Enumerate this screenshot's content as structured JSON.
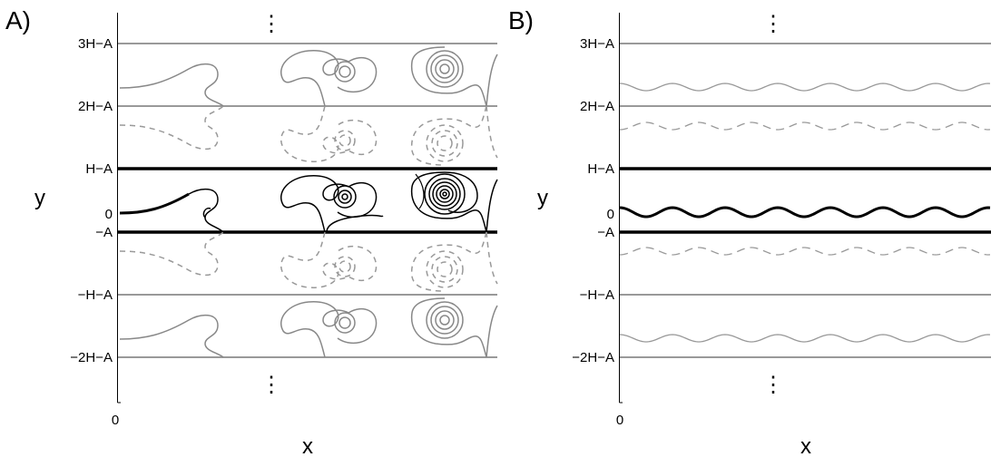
{
  "panels": [
    {
      "letter": "A)",
      "y_ticks": [
        "3H−A",
        "2H−A",
        "H−A",
        "0",
        "−A",
        "−H−A",
        "−2H−A"
      ],
      "x_tick": "0",
      "xlabel": "x",
      "ylabel": "y",
      "ellipsis": "⋮"
    },
    {
      "letter": "B)",
      "y_ticks": [
        "3H−A",
        "2H−A",
        "H−A",
        "0",
        "−A",
        "−H−A",
        "−2H−A"
      ],
      "x_tick": "0",
      "xlabel": "x",
      "ylabel": "y",
      "ellipsis": "⋮"
    }
  ],
  "colors": {
    "primary_curve": "#000000",
    "image_curve": "#888888",
    "boundary_primary": "#000000",
    "boundary_image": "#999999"
  }
}
